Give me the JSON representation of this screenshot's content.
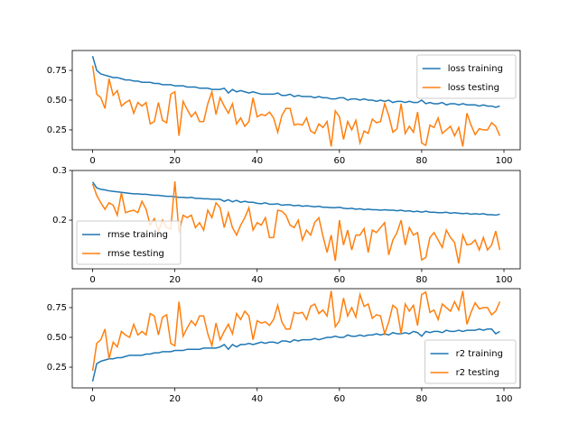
{
  "chart_data": [
    {
      "type": "line",
      "x": [
        0,
        1,
        2,
        3,
        4,
        5,
        6,
        7,
        8,
        9,
        10,
        11,
        12,
        13,
        14,
        15,
        16,
        17,
        18,
        19,
        20,
        21,
        22,
        23,
        24,
        25,
        26,
        27,
        28,
        29,
        30,
        31,
        32,
        33,
        34,
        35,
        36,
        37,
        38,
        39,
        40,
        41,
        42,
        43,
        44,
        45,
        46,
        47,
        48,
        49,
        50,
        51,
        52,
        53,
        54,
        55,
        56,
        57,
        58,
        59,
        60,
        61,
        62,
        63,
        64,
        65,
        66,
        67,
        68,
        69,
        70,
        71,
        72,
        73,
        74,
        75,
        76,
        77,
        78,
        79,
        80,
        81,
        82,
        83,
        84,
        85,
        86,
        87,
        88,
        89,
        90,
        91,
        92,
        93,
        94,
        95,
        96,
        97,
        98,
        99
      ],
      "xlim": [
        -4.95,
        103.95
      ],
      "xticks": [
        0,
        20,
        40,
        60,
        80,
        100
      ],
      "ylim": [
        0.083,
        0.917
      ],
      "yticks": [
        0.25,
        {
          "value": 0.5,
          "label": "0.50"
        },
        0.75
      ],
      "legend": "upper right",
      "series": [
        {
          "name": "loss training",
          "color": "#1f77b4",
          "values": [
            0.87,
            0.75,
            0.72,
            0.71,
            0.7,
            0.69,
            0.69,
            0.68,
            0.67,
            0.67,
            0.66,
            0.66,
            0.65,
            0.65,
            0.65,
            0.64,
            0.64,
            0.63,
            0.63,
            0.63,
            0.62,
            0.62,
            0.62,
            0.61,
            0.61,
            0.61,
            0.6,
            0.6,
            0.6,
            0.59,
            0.59,
            0.59,
            0.6,
            0.56,
            0.59,
            0.57,
            0.58,
            0.57,
            0.56,
            0.57,
            0.56,
            0.55,
            0.55,
            0.55,
            0.55,
            0.56,
            0.54,
            0.54,
            0.55,
            0.53,
            0.54,
            0.53,
            0.53,
            0.53,
            0.52,
            0.53,
            0.52,
            0.52,
            0.51,
            0.51,
            0.52,
            0.52,
            0.5,
            0.51,
            0.51,
            0.5,
            0.51,
            0.5,
            0.5,
            0.49,
            0.5,
            0.49,
            0.5,
            0.48,
            0.49,
            0.49,
            0.48,
            0.49,
            0.48,
            0.48,
            0.5,
            0.47,
            0.48,
            0.47,
            0.47,
            0.48,
            0.46,
            0.47,
            0.47,
            0.46,
            0.47,
            0.46,
            0.46,
            0.46,
            0.45,
            0.46,
            0.45,
            0.45,
            0.44,
            0.45
          ]
        },
        {
          "name": "loss testing",
          "color": "#ff7f0e",
          "values": [
            0.79,
            0.55,
            0.52,
            0.43,
            0.68,
            0.54,
            0.58,
            0.45,
            0.48,
            0.5,
            0.39,
            0.48,
            0.45,
            0.48,
            0.3,
            0.32,
            0.48,
            0.33,
            0.31,
            0.55,
            0.57,
            0.2,
            0.49,
            0.42,
            0.36,
            0.4,
            0.32,
            0.32,
            0.47,
            0.57,
            0.38,
            0.52,
            0.45,
            0.39,
            0.47,
            0.3,
            0.35,
            0.28,
            0.32,
            0.52,
            0.36,
            0.38,
            0.37,
            0.4,
            0.35,
            0.23,
            0.37,
            0.43,
            0.43,
            0.29,
            0.3,
            0.29,
            0.35,
            0.24,
            0.22,
            0.3,
            0.27,
            0.32,
            0.11,
            0.41,
            0.36,
            0.17,
            0.32,
            0.25,
            0.33,
            0.14,
            0.24,
            0.22,
            0.34,
            0.31,
            0.32,
            0.47,
            0.37,
            0.23,
            0.26,
            0.47,
            0.22,
            0.28,
            0.23,
            0.4,
            0.14,
            0.12,
            0.29,
            0.27,
            0.35,
            0.22,
            0.25,
            0.28,
            0.2,
            0.27,
            0.11,
            0.39,
            0.29,
            0.21,
            0.26,
            0.25,
            0.25,
            0.31,
            0.28,
            0.2
          ]
        }
      ]
    },
    {
      "type": "line",
      "x": [
        0,
        1,
        2,
        3,
        4,
        5,
        6,
        7,
        8,
        9,
        10,
        11,
        12,
        13,
        14,
        15,
        16,
        17,
        18,
        19,
        20,
        21,
        22,
        23,
        24,
        25,
        26,
        27,
        28,
        29,
        30,
        31,
        32,
        33,
        34,
        35,
        36,
        37,
        38,
        39,
        40,
        41,
        42,
        43,
        44,
        45,
        46,
        47,
        48,
        49,
        50,
        51,
        52,
        53,
        54,
        55,
        56,
        57,
        58,
        59,
        60,
        61,
        62,
        63,
        64,
        65,
        66,
        67,
        68,
        69,
        70,
        71,
        72,
        73,
        74,
        75,
        76,
        77,
        78,
        79,
        80,
        81,
        82,
        83,
        84,
        85,
        86,
        87,
        88,
        89,
        90,
        91,
        92,
        93,
        94,
        95,
        96,
        97,
        98,
        99
      ],
      "xlim": [
        -4.95,
        103.95
      ],
      "xticks": [
        0,
        20,
        40,
        60,
        80,
        100
      ],
      "ylim": [
        0.102,
        0.3
      ],
      "yticks": [
        0.2,
        0.3
      ],
      "legend": "lower left",
      "series": [
        {
          "name": "rmse training",
          "color": "#1f77b4",
          "values": [
            0.277,
            0.265,
            0.262,
            0.261,
            0.259,
            0.258,
            0.257,
            0.256,
            0.255,
            0.254,
            0.253,
            0.253,
            0.252,
            0.252,
            0.251,
            0.25,
            0.25,
            0.249,
            0.248,
            0.248,
            0.247,
            0.246,
            0.246,
            0.245,
            0.246,
            0.244,
            0.244,
            0.243,
            0.243,
            0.242,
            0.242,
            0.242,
            0.238,
            0.241,
            0.237,
            0.24,
            0.236,
            0.238,
            0.236,
            0.236,
            0.234,
            0.233,
            0.235,
            0.232,
            0.232,
            0.233,
            0.23,
            0.231,
            0.231,
            0.229,
            0.23,
            0.228,
            0.229,
            0.228,
            0.227,
            0.228,
            0.226,
            0.226,
            0.225,
            0.225,
            0.226,
            0.224,
            0.223,
            0.224,
            0.222,
            0.223,
            0.221,
            0.222,
            0.221,
            0.221,
            0.22,
            0.221,
            0.22,
            0.22,
            0.219,
            0.22,
            0.218,
            0.219,
            0.217,
            0.218,
            0.216,
            0.218,
            0.216,
            0.216,
            0.215,
            0.215,
            0.216,
            0.214,
            0.215,
            0.214,
            0.213,
            0.214,
            0.212,
            0.213,
            0.212,
            0.213,
            0.211,
            0.211,
            0.21,
            0.212
          ]
        },
        {
          "name": "rmse testing",
          "color": "#ff7f0e",
          "values": [
            0.273,
            0.25,
            0.235,
            0.222,
            0.235,
            0.23,
            0.21,
            0.255,
            0.215,
            0.218,
            0.22,
            0.215,
            0.238,
            0.222,
            0.19,
            0.203,
            0.178,
            0.2,
            0.185,
            0.182,
            0.278,
            0.175,
            0.21,
            0.205,
            0.21,
            0.185,
            0.195,
            0.18,
            0.22,
            0.205,
            0.235,
            0.225,
            0.185,
            0.215,
            0.185,
            0.17,
            0.19,
            0.205,
            0.225,
            0.18,
            0.195,
            0.19,
            0.205,
            0.165,
            0.165,
            0.22,
            0.218,
            0.21,
            0.19,
            0.185,
            0.2,
            0.16,
            0.18,
            0.17,
            0.195,
            0.205,
            0.168,
            0.135,
            0.17,
            0.118,
            0.2,
            0.15,
            0.18,
            0.14,
            0.17,
            0.17,
            0.183,
            0.135,
            0.18,
            0.175,
            0.185,
            0.195,
            0.13,
            0.16,
            0.175,
            0.2,
            0.15,
            0.185,
            0.17,
            0.175,
            0.12,
            0.125,
            0.165,
            0.175,
            0.16,
            0.145,
            0.18,
            0.165,
            0.155,
            0.113,
            0.17,
            0.15,
            0.152,
            0.16,
            0.14,
            0.165,
            0.14,
            0.15,
            0.178,
            0.14
          ]
        }
      ]
    },
    {
      "type": "line",
      "x": [
        0,
        1,
        2,
        3,
        4,
        5,
        6,
        7,
        8,
        9,
        10,
        11,
        12,
        13,
        14,
        15,
        16,
        17,
        18,
        19,
        20,
        21,
        22,
        23,
        24,
        25,
        26,
        27,
        28,
        29,
        30,
        31,
        32,
        33,
        34,
        35,
        36,
        37,
        38,
        39,
        40,
        41,
        42,
        43,
        44,
        45,
        46,
        47,
        48,
        49,
        50,
        51,
        52,
        53,
        54,
        55,
        56,
        57,
        58,
        59,
        60,
        61,
        62,
        63,
        64,
        65,
        66,
        67,
        68,
        69,
        70,
        71,
        72,
        73,
        74,
        75,
        76,
        77,
        78,
        79,
        80,
        81,
        82,
        83,
        84,
        85,
        86,
        87,
        88,
        89,
        90,
        91,
        92,
        93,
        94,
        95,
        96,
        97,
        98,
        99
      ],
      "xlim": [
        -4.95,
        103.95
      ],
      "xticks": [
        0,
        20,
        40,
        60,
        80,
        100
      ],
      "ylim": [
        0.076,
        0.909
      ],
      "yticks": [
        0.25,
        {
          "value": 0.5,
          "label": "0.50"
        },
        0.75
      ],
      "legend": "lower right",
      "series": [
        {
          "name": "r2 training",
          "color": "#1f77b4",
          "values": [
            0.13,
            0.28,
            0.3,
            0.31,
            0.32,
            0.32,
            0.33,
            0.33,
            0.34,
            0.35,
            0.35,
            0.35,
            0.35,
            0.36,
            0.36,
            0.37,
            0.37,
            0.38,
            0.38,
            0.38,
            0.39,
            0.39,
            0.39,
            0.4,
            0.4,
            0.4,
            0.4,
            0.41,
            0.41,
            0.41,
            0.41,
            0.42,
            0.44,
            0.4,
            0.44,
            0.42,
            0.44,
            0.44,
            0.45,
            0.44,
            0.45,
            0.46,
            0.45,
            0.46,
            0.46,
            0.45,
            0.47,
            0.47,
            0.46,
            0.48,
            0.47,
            0.48,
            0.48,
            0.48,
            0.49,
            0.48,
            0.49,
            0.5,
            0.5,
            0.51,
            0.5,
            0.5,
            0.52,
            0.51,
            0.51,
            0.52,
            0.51,
            0.52,
            0.52,
            0.53,
            0.52,
            0.53,
            0.52,
            0.54,
            0.53,
            0.53,
            0.54,
            0.53,
            0.55,
            0.54,
            0.51,
            0.55,
            0.54,
            0.55,
            0.55,
            0.54,
            0.56,
            0.55,
            0.55,
            0.56,
            0.55,
            0.56,
            0.56,
            0.56,
            0.57,
            0.56,
            0.57,
            0.57,
            0.53,
            0.55
          ]
        },
        {
          "name": "r2 testing",
          "color": "#ff7f0e",
          "values": [
            0.22,
            0.45,
            0.48,
            0.57,
            0.32,
            0.46,
            0.42,
            0.55,
            0.52,
            0.5,
            0.61,
            0.52,
            0.55,
            0.52,
            0.7,
            0.68,
            0.52,
            0.67,
            0.69,
            0.45,
            0.43,
            0.8,
            0.51,
            0.58,
            0.64,
            0.6,
            0.68,
            0.68,
            0.53,
            0.43,
            0.62,
            0.48,
            0.55,
            0.61,
            0.53,
            0.7,
            0.65,
            0.72,
            0.68,
            0.48,
            0.64,
            0.62,
            0.63,
            0.6,
            0.65,
            0.77,
            0.63,
            0.57,
            0.57,
            0.71,
            0.7,
            0.71,
            0.65,
            0.76,
            0.78,
            0.7,
            0.73,
            0.68,
            0.89,
            0.59,
            0.64,
            0.83,
            0.68,
            0.75,
            0.67,
            0.86,
            0.76,
            0.78,
            0.66,
            0.69,
            0.68,
            0.53,
            0.63,
            0.77,
            0.74,
            0.53,
            0.78,
            0.72,
            0.77,
            0.6,
            0.86,
            0.88,
            0.71,
            0.73,
            0.65,
            0.78,
            0.75,
            0.72,
            0.8,
            0.73,
            0.89,
            0.61,
            0.71,
            0.79,
            0.74,
            0.75,
            0.75,
            0.69,
            0.72,
            0.8
          ]
        }
      ]
    }
  ]
}
